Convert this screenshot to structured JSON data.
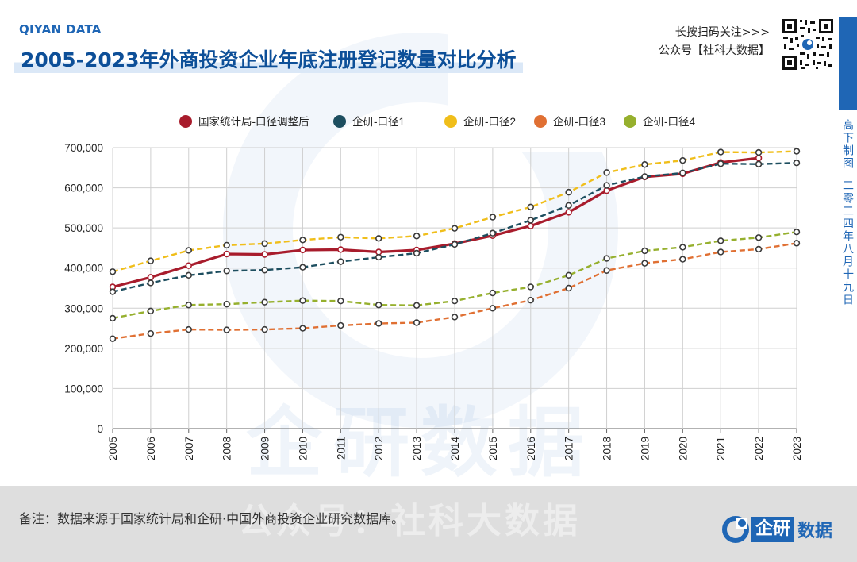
{
  "header": {
    "brand": "QIYAN DATA",
    "title": "2005-2023年外商投资企业年底注册登记数量对比分析",
    "follow_line1": "长按扫码关注>>>",
    "follow_line2": "公众号【社科大数据】"
  },
  "sidebar": {
    "author": "高下制图",
    "date": "二零二四年八月十九日"
  },
  "watermark": {
    "center": "企研数据",
    "footer": "公众号：社科大数据"
  },
  "footer": {
    "note": "备注：数据来源于国家统计局和企研·中国外商投资企业研究数据库。",
    "logo_left": "企研",
    "logo_right": "数据"
  },
  "icons": {
    "qr": "qr-code-icon",
    "logo": "qiyan-logo-icon"
  },
  "chart_data": {
    "type": "line",
    "title": "",
    "xlabel": "",
    "ylabel": "",
    "ylim": [
      0,
      700000
    ],
    "yticks": [
      "0",
      "100,000",
      "200,000",
      "300,000",
      "400,000",
      "500,000",
      "600,000",
      "700,000"
    ],
    "grid": true,
    "legend_position": "top-center",
    "x": [
      "2005",
      "2006",
      "2007",
      "2008",
      "2009",
      "2010",
      "2011",
      "2012",
      "2013",
      "2014",
      "2015",
      "2016",
      "2017",
      "2018",
      "2019",
      "2020",
      "2021",
      "2022",
      "2023"
    ],
    "series": [
      {
        "name": "国家统计局-口径调整后",
        "color": "#a81c2c",
        "style": "solid",
        "values": [
          353000,
          377000,
          406000,
          435000,
          434000,
          445000,
          446000,
          440000,
          445000,
          461000,
          481000,
          505000,
          539000,
          593000,
          627000,
          635000,
          663000,
          674000,
          null
        ]
      },
      {
        "name": "企研-口径1",
        "color": "#1d4e5f",
        "style": "dashed",
        "values": [
          341000,
          363000,
          382000,
          393000,
          395000,
          402000,
          416000,
          427000,
          437000,
          459000,
          487000,
          519000,
          556000,
          606000,
          628000,
          637000,
          660000,
          659000,
          662000
        ]
      },
      {
        "name": "企研-口径2",
        "color": "#f0be1a",
        "style": "dashed",
        "values": [
          391000,
          418000,
          444000,
          457000,
          461000,
          470000,
          477000,
          474000,
          480000,
          499000,
          527000,
          552000,
          589000,
          638000,
          658000,
          668000,
          689000,
          688000,
          691000
        ]
      },
      {
        "name": "企研-口径3",
        "color": "#e07033",
        "style": "dashed",
        "values": [
          224000,
          237000,
          247000,
          246000,
          247000,
          250000,
          257000,
          262000,
          264000,
          278000,
          300000,
          320000,
          350000,
          394000,
          412000,
          422000,
          440000,
          447000,
          462000
        ]
      },
      {
        "name": "企研-口径4",
        "color": "#96b02e",
        "style": "dashed",
        "values": [
          275000,
          293000,
          308000,
          310000,
          315000,
          319000,
          318000,
          308000,
          307000,
          318000,
          338000,
          353000,
          382000,
          424000,
          443000,
          452000,
          468000,
          476000,
          490000
        ]
      }
    ]
  }
}
